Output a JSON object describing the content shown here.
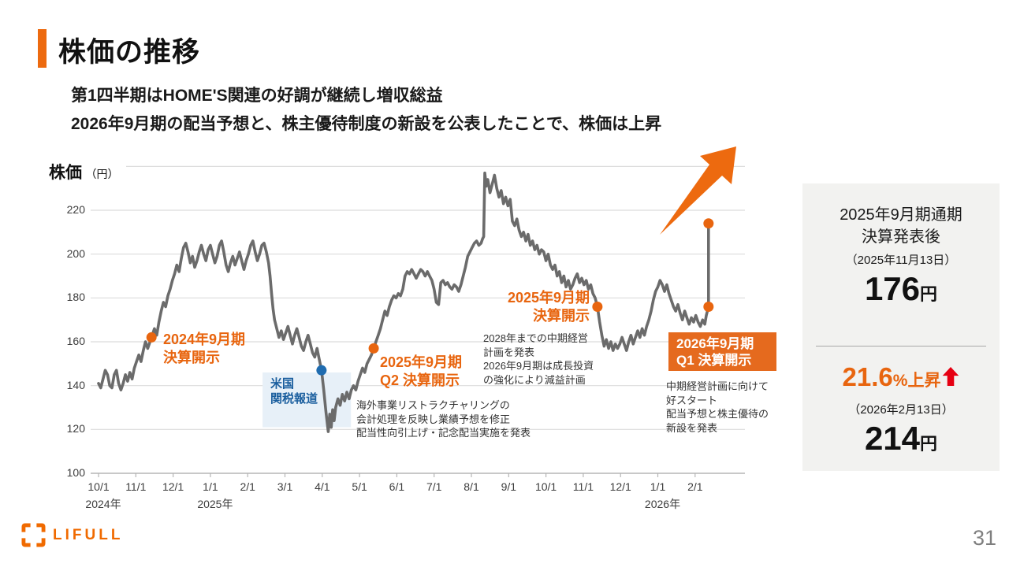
{
  "slide": {
    "title": "株価の推移",
    "subtitle_line1": "第1四半期はHOME'S関連の好調が継続し増収総益",
    "subtitle_line2": "2026年9月期の配当予想と、株主優待制度の新設を公表したことで、株価は上昇"
  },
  "colors": {
    "accent_orange": "#ED6A0F",
    "annotation_orange": "#E8650F",
    "box_orange": "#E56A1E",
    "line_gray": "#6B6B6B",
    "blue_text": "#1A5E9E",
    "blue_dot": "#1F6CB0",
    "band_blue": "#E7F0F8",
    "red": "#E60012",
    "gridline": "#DCDCDC",
    "baseline": "#B5B5B5"
  },
  "chart_data": {
    "type": "line",
    "title_main": "株価",
    "title_unit": "（円）",
    "series_name": "株価",
    "ylim": [
      100,
      240
    ],
    "y_ticks": [
      220,
      200,
      180,
      160,
      140,
      120,
      100
    ],
    "x_ticks": [
      "10/1",
      "11/1",
      "12/1",
      "1/1",
      "2/1",
      "3/1",
      "4/1",
      "5/1",
      "6/1",
      "7/1",
      "8/1",
      "9/1",
      "10/1",
      "11/1",
      "12/1",
      "1/1",
      "2/1"
    ],
    "year_labels": [
      {
        "label": "2024年",
        "tick": 0
      },
      {
        "label": "2025年",
        "tick": 3
      },
      {
        "label": "2026年",
        "tick": 15
      }
    ],
    "grid_on": true,
    "highlight_band": {
      "m_from": 4.4,
      "m_to": 6.77,
      "p_from": 121,
      "p_to": 146,
      "label": "米国関税報道"
    },
    "markers": [
      {
        "m": 1.42,
        "p": 162,
        "color": "#E8650F"
      },
      {
        "m": 5.98,
        "p": 147,
        "color": "#1F6CB0"
      },
      {
        "m": 7.38,
        "p": 157,
        "color": "#E8650F"
      },
      {
        "m": 13.38,
        "p": 176,
        "color": "#E8650F"
      },
      {
        "m": 16.36,
        "p": 176,
        "color": "#E8650F"
      },
      {
        "m": 16.36,
        "p": 214,
        "color": "#E8650F"
      }
    ],
    "points": [
      [
        0.0,
        141
      ],
      [
        0.06,
        139
      ],
      [
        0.12,
        143
      ],
      [
        0.18,
        147
      ],
      [
        0.24,
        145
      ],
      [
        0.3,
        140
      ],
      [
        0.36,
        139
      ],
      [
        0.42,
        145
      ],
      [
        0.48,
        147
      ],
      [
        0.54,
        141
      ],
      [
        0.6,
        138
      ],
      [
        0.66,
        141
      ],
      [
        0.72,
        145
      ],
      [
        0.78,
        142
      ],
      [
        0.84,
        146
      ],
      [
        0.9,
        143
      ],
      [
        0.96,
        148
      ],
      [
        1.02,
        151
      ],
      [
        1.08,
        154
      ],
      [
        1.14,
        151
      ],
      [
        1.2,
        156
      ],
      [
        1.26,
        160
      ],
      [
        1.32,
        157
      ],
      [
        1.38,
        160
      ],
      [
        1.42,
        162
      ],
      [
        1.5,
        166
      ],
      [
        1.56,
        163
      ],
      [
        1.62,
        169
      ],
      [
        1.68,
        174
      ],
      [
        1.74,
        178
      ],
      [
        1.8,
        176
      ],
      [
        1.86,
        181
      ],
      [
        1.92,
        184
      ],
      [
        1.98,
        188
      ],
      [
        2.04,
        191
      ],
      [
        2.1,
        195
      ],
      [
        2.16,
        192
      ],
      [
        2.22,
        198
      ],
      [
        2.28,
        203
      ],
      [
        2.34,
        205
      ],
      [
        2.4,
        201
      ],
      [
        2.46,
        196
      ],
      [
        2.52,
        199
      ],
      [
        2.58,
        194
      ],
      [
        2.64,
        197
      ],
      [
        2.7,
        201
      ],
      [
        2.76,
        204
      ],
      [
        2.82,
        200
      ],
      [
        2.88,
        197
      ],
      [
        2.94,
        202
      ],
      [
        3.0,
        204
      ],
      [
        3.06,
        200
      ],
      [
        3.12,
        196
      ],
      [
        3.18,
        199
      ],
      [
        3.24,
        204
      ],
      [
        3.3,
        206
      ],
      [
        3.36,
        201
      ],
      [
        3.42,
        195
      ],
      [
        3.48,
        192
      ],
      [
        3.54,
        196
      ],
      [
        3.6,
        199
      ],
      [
        3.66,
        195
      ],
      [
        3.72,
        198
      ],
      [
        3.78,
        201
      ],
      [
        3.84,
        197
      ],
      [
        3.9,
        193
      ],
      [
        3.96,
        197
      ],
      [
        4.02,
        200
      ],
      [
        4.08,
        204
      ],
      [
        4.14,
        206
      ],
      [
        4.2,
        201
      ],
      [
        4.26,
        197
      ],
      [
        4.32,
        200
      ],
      [
        4.38,
        204
      ],
      [
        4.44,
        205
      ],
      [
        4.5,
        201
      ],
      [
        4.56,
        196
      ],
      [
        4.6,
        190
      ],
      [
        4.64,
        182
      ],
      [
        4.68,
        175
      ],
      [
        4.72,
        170
      ],
      [
        4.78,
        166
      ],
      [
        4.84,
        162
      ],
      [
        4.9,
        165
      ],
      [
        4.96,
        161
      ],
      [
        5.02,
        164
      ],
      [
        5.08,
        167
      ],
      [
        5.14,
        163
      ],
      [
        5.2,
        159
      ],
      [
        5.26,
        163
      ],
      [
        5.32,
        166
      ],
      [
        5.38,
        162
      ],
      [
        5.44,
        158
      ],
      [
        5.5,
        156
      ],
      [
        5.56,
        160
      ],
      [
        5.62,
        163
      ],
      [
        5.68,
        159
      ],
      [
        5.74,
        155
      ],
      [
        5.8,
        153
      ],
      [
        5.86,
        157
      ],
      [
        5.92,
        152
      ],
      [
        5.98,
        147
      ],
      [
        6.04,
        138
      ],
      [
        6.1,
        128
      ],
      [
        6.16,
        119
      ],
      [
        6.2,
        127
      ],
      [
        6.24,
        121
      ],
      [
        6.28,
        129
      ],
      [
        6.32,
        124
      ],
      [
        6.36,
        130
      ],
      [
        6.42,
        134
      ],
      [
        6.48,
        131
      ],
      [
        6.54,
        136
      ],
      [
        6.6,
        133
      ],
      [
        6.66,
        137
      ],
      [
        6.72,
        134
      ],
      [
        6.78,
        138
      ],
      [
        6.84,
        140
      ],
      [
        6.9,
        138
      ],
      [
        6.96,
        142
      ],
      [
        7.02,
        145
      ],
      [
        7.08,
        148
      ],
      [
        7.14,
        146
      ],
      [
        7.2,
        150
      ],
      [
        7.26,
        152
      ],
      [
        7.32,
        154
      ],
      [
        7.38,
        157
      ],
      [
        7.44,
        160
      ],
      [
        7.5,
        163
      ],
      [
        7.56,
        166
      ],
      [
        7.62,
        170
      ],
      [
        7.68,
        174
      ],
      [
        7.74,
        172
      ],
      [
        7.8,
        176
      ],
      [
        7.86,
        179
      ],
      [
        7.92,
        181
      ],
      [
        7.98,
        180
      ],
      [
        8.04,
        182
      ],
      [
        8.1,
        181
      ],
      [
        8.16,
        184
      ],
      [
        8.22,
        190
      ],
      [
        8.28,
        192
      ],
      [
        8.34,
        191
      ],
      [
        8.4,
        193
      ],
      [
        8.46,
        191
      ],
      [
        8.52,
        189
      ],
      [
        8.58,
        191
      ],
      [
        8.64,
        193
      ],
      [
        8.7,
        192
      ],
      [
        8.76,
        190
      ],
      [
        8.82,
        192
      ],
      [
        8.88,
        190
      ],
      [
        8.94,
        188
      ],
      [
        9.0,
        184
      ],
      [
        9.06,
        178
      ],
      [
        9.12,
        177
      ],
      [
        9.18,
        187
      ],
      [
        9.24,
        188
      ],
      [
        9.3,
        186
      ],
      [
        9.36,
        187
      ],
      [
        9.42,
        185
      ],
      [
        9.48,
        184
      ],
      [
        9.54,
        186
      ],
      [
        9.6,
        185
      ],
      [
        9.66,
        183
      ],
      [
        9.72,
        186
      ],
      [
        9.78,
        190
      ],
      [
        9.84,
        194
      ],
      [
        9.9,
        199
      ],
      [
        9.96,
        201
      ],
      [
        10.02,
        203
      ],
      [
        10.08,
        205
      ],
      [
        10.14,
        206
      ],
      [
        10.2,
        204
      ],
      [
        10.26,
        205
      ],
      [
        10.3,
        207
      ],
      [
        10.33,
        208
      ],
      [
        10.36,
        237
      ],
      [
        10.4,
        231
      ],
      [
        10.44,
        234
      ],
      [
        10.5,
        228
      ],
      [
        10.56,
        232
      ],
      [
        10.62,
        236
      ],
      [
        10.68,
        230
      ],
      [
        10.74,
        226
      ],
      [
        10.8,
        229
      ],
      [
        10.86,
        223
      ],
      [
        10.92,
        226
      ],
      [
        10.98,
        222
      ],
      [
        11.04,
        225
      ],
      [
        11.1,
        215
      ],
      [
        11.16,
        213
      ],
      [
        11.22,
        216
      ],
      [
        11.28,
        211
      ],
      [
        11.34,
        208
      ],
      [
        11.4,
        210
      ],
      [
        11.46,
        206
      ],
      [
        11.52,
        209
      ],
      [
        11.58,
        204
      ],
      [
        11.64,
        206
      ],
      [
        11.7,
        202
      ],
      [
        11.76,
        204
      ],
      [
        11.82,
        200
      ],
      [
        11.88,
        202
      ],
      [
        11.94,
        201
      ],
      [
        12.0,
        197
      ],
      [
        12.06,
        200
      ],
      [
        12.12,
        195
      ],
      [
        12.18,
        193
      ],
      [
        12.24,
        195
      ],
      [
        12.3,
        190
      ],
      [
        12.36,
        192
      ],
      [
        12.42,
        187
      ],
      [
        12.48,
        190
      ],
      [
        12.54,
        185
      ],
      [
        12.6,
        188
      ],
      [
        12.66,
        184
      ],
      [
        12.72,
        186
      ],
      [
        12.78,
        189
      ],
      [
        12.84,
        191
      ],
      [
        12.9,
        187
      ],
      [
        12.96,
        189
      ],
      [
        13.02,
        186
      ],
      [
        13.08,
        188
      ],
      [
        13.14,
        184
      ],
      [
        13.2,
        186
      ],
      [
        13.26,
        182
      ],
      [
        13.32,
        180
      ],
      [
        13.38,
        176
      ],
      [
        13.44,
        169
      ],
      [
        13.5,
        163
      ],
      [
        13.56,
        158
      ],
      [
        13.62,
        161
      ],
      [
        13.68,
        157
      ],
      [
        13.74,
        160
      ],
      [
        13.8,
        156
      ],
      [
        13.86,
        159
      ],
      [
        13.92,
        157
      ],
      [
        13.98,
        159
      ],
      [
        14.04,
        162
      ],
      [
        14.1,
        159
      ],
      [
        14.16,
        156
      ],
      [
        14.22,
        160
      ],
      [
        14.28,
        163
      ],
      [
        14.34,
        159
      ],
      [
        14.4,
        162
      ],
      [
        14.46,
        165
      ],
      [
        14.52,
        162
      ],
      [
        14.58,
        166
      ],
      [
        14.64,
        163
      ],
      [
        14.7,
        167
      ],
      [
        14.76,
        170
      ],
      [
        14.82,
        174
      ],
      [
        14.88,
        179
      ],
      [
        14.94,
        183
      ],
      [
        15.0,
        185
      ],
      [
        15.06,
        188
      ],
      [
        15.12,
        186
      ],
      [
        15.18,
        183
      ],
      [
        15.24,
        186
      ],
      [
        15.3,
        182
      ],
      [
        15.36,
        179
      ],
      [
        15.42,
        176
      ],
      [
        15.48,
        174
      ],
      [
        15.54,
        177
      ],
      [
        15.6,
        173
      ],
      [
        15.66,
        170
      ],
      [
        15.72,
        174
      ],
      [
        15.78,
        171
      ],
      [
        15.84,
        168
      ],
      [
        15.9,
        171
      ],
      [
        15.96,
        169
      ],
      [
        16.02,
        172
      ],
      [
        16.08,
        169
      ],
      [
        16.14,
        167
      ],
      [
        16.2,
        170
      ],
      [
        16.26,
        168
      ],
      [
        16.3,
        172
      ],
      [
        16.33,
        174
      ],
      [
        16.36,
        176
      ],
      [
        16.36,
        214
      ]
    ]
  },
  "annotations": {
    "earnings_2024": {
      "lines": [
        "2024年9月期",
        "決算開示"
      ]
    },
    "tariff": {
      "lines": [
        "米国",
        "関税報道"
      ]
    },
    "q2_2025": {
      "lines": [
        "2025年9月期",
        "Q2 決算開示"
      ]
    },
    "earnings_2025": {
      "lines": [
        "2025年9月期",
        "決算開示"
      ]
    },
    "q1_2026_box": {
      "lines": [
        "2026年9月期",
        "Q1 決算開示"
      ]
    },
    "note_mid": {
      "lines": [
        "2028年までの中期経営",
        "計画を発表",
        "2026年9月期は成長投資",
        "の強化により減益計画"
      ]
    },
    "note_q2": {
      "lines": [
        "海外事業リストラクチャリングの",
        "会計処理を反映し業績予想を修正",
        "配当性向引上げ・記念配当実施を発表"
      ]
    },
    "note_q1": {
      "lines": [
        "中期経営計画に向けて",
        "好スタート",
        "配当予想と株主優待の",
        "新設を発表"
      ]
    }
  },
  "sidebar": {
    "block1": {
      "line1": "2025年9月期通期",
      "line2": "決算発表後",
      "date": "（2025年11月13日）",
      "price": "176",
      "unit": "円"
    },
    "block2": {
      "pct": "21.6",
      "pct_suffix": "%上昇",
      "date": "（2026年2月13日）",
      "price": "214",
      "unit": "円"
    }
  },
  "footer": {
    "logo_text": "LIFULL",
    "page_number": "31"
  }
}
